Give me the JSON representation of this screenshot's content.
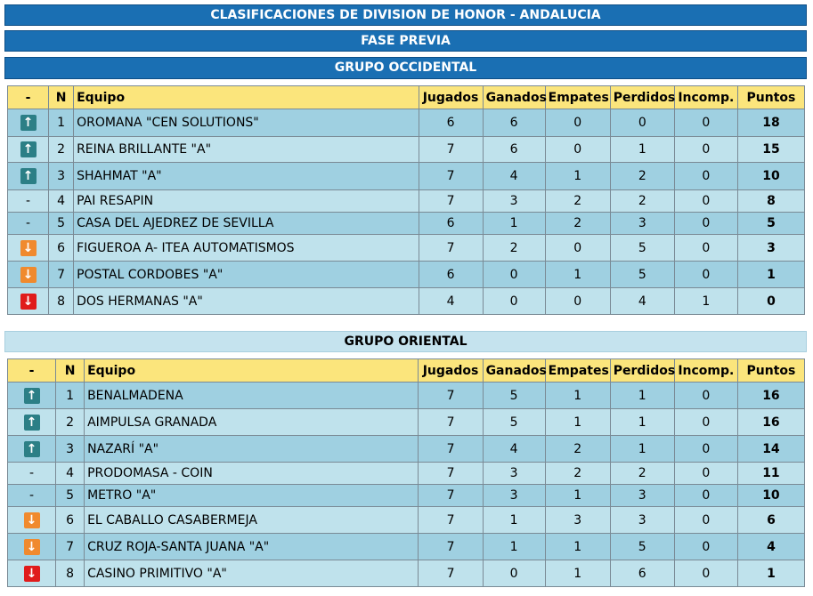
{
  "title": "CLASIFICACIONES DE DIVISION DE HONOR - ANDALUCIA",
  "phase": "FASE PREVIA",
  "columns": {
    "trend": "-",
    "n": "N",
    "team": "Equipo",
    "played": "Jugados",
    "won": "Ganados",
    "drawn": "Empates",
    "lost": "Perdidos",
    "forfeit": "Incomp.",
    "points": "Puntos"
  },
  "groups": [
    {
      "name": "GRUPO OCCIDENTAL",
      "rows": [
        {
          "trend": "up",
          "n": "1",
          "team": "OROMANA \"CEN SOLUTIONS\"",
          "played": "6",
          "won": "6",
          "drawn": "0",
          "lost": "0",
          "forfeit": "0",
          "points": "18"
        },
        {
          "trend": "up",
          "n": "2",
          "team": "REINA BRILLANTE \"A\"",
          "played": "7",
          "won": "6",
          "drawn": "0",
          "lost": "1",
          "forfeit": "0",
          "points": "15"
        },
        {
          "trend": "up",
          "n": "3",
          "team": "SHAHMAT \"A\"",
          "played": "7",
          "won": "4",
          "drawn": "1",
          "lost": "2",
          "forfeit": "0",
          "points": "10"
        },
        {
          "trend": "-",
          "n": "4",
          "team": "PAI RESAPIN",
          "played": "7",
          "won": "3",
          "drawn": "2",
          "lost": "2",
          "forfeit": "0",
          "points": "8"
        },
        {
          "trend": "-",
          "n": "5",
          "team": "CASA DEL AJEDREZ DE SEVILLA",
          "played": "6",
          "won": "1",
          "drawn": "2",
          "lost": "3",
          "forfeit": "0",
          "points": "5"
        },
        {
          "trend": "down-orange",
          "n": "6",
          "team": "FIGUEROA A- ITEA AUTOMATISMOS",
          "played": "7",
          "won": "2",
          "drawn": "0",
          "lost": "5",
          "forfeit": "0",
          "points": "3"
        },
        {
          "trend": "down-orange",
          "n": "7",
          "team": "POSTAL CORDOBES \"A\"",
          "played": "6",
          "won": "0",
          "drawn": "1",
          "lost": "5",
          "forfeit": "0",
          "points": "1"
        },
        {
          "trend": "down-red",
          "n": "8",
          "team": "DOS HERMANAS \"A\"",
          "played": "4",
          "won": "0",
          "drawn": "0",
          "lost": "4",
          "forfeit": "1",
          "points": "0"
        }
      ]
    },
    {
      "name": "GRUPO ORIENTAL",
      "rows": [
        {
          "trend": "up",
          "n": "1",
          "team": "BENALMADENA",
          "played": "7",
          "won": "5",
          "drawn": "1",
          "lost": "1",
          "forfeit": "0",
          "points": "16"
        },
        {
          "trend": "up",
          "n": "2",
          "team": "AIMPULSA GRANADA",
          "played": "7",
          "won": "5",
          "drawn": "1",
          "lost": "1",
          "forfeit": "0",
          "points": "16"
        },
        {
          "trend": "up",
          "n": "3",
          "team": "NAZARÍ \"A\"",
          "played": "7",
          "won": "4",
          "drawn": "2",
          "lost": "1",
          "forfeit": "0",
          "points": "14"
        },
        {
          "trend": "-",
          "n": "4",
          "team": "PRODOMASA - COIN",
          "played": "7",
          "won": "3",
          "drawn": "2",
          "lost": "2",
          "forfeit": "0",
          "points": "11"
        },
        {
          "trend": "-",
          "n": "5",
          "team": "METRO \"A\"",
          "played": "7",
          "won": "3",
          "drawn": "1",
          "lost": "3",
          "forfeit": "0",
          "points": "10"
        },
        {
          "trend": "down-orange",
          "n": "6",
          "team": "EL CABALLO CASABERMEJA",
          "played": "7",
          "won": "1",
          "drawn": "3",
          "lost": "3",
          "forfeit": "0",
          "points": "6"
        },
        {
          "trend": "down-orange",
          "n": "7",
          "team": "CRUZ ROJA-SANTA JUANA \"A\"",
          "played": "7",
          "won": "1",
          "drawn": "1",
          "lost": "5",
          "forfeit": "0",
          "points": "4"
        },
        {
          "trend": "down-red",
          "n": "8",
          "team": "CASINO PRIMITIVO \"A\"",
          "played": "7",
          "won": "0",
          "drawn": "1",
          "lost": "6",
          "forfeit": "0",
          "points": "1"
        }
      ]
    }
  ],
  "colors": {
    "header_bar": "#1a6fb3",
    "header_row": "#fbe57c",
    "row_dark": "#9fd0e1",
    "row_light": "#bfe2ec",
    "arrow_up": "#2c7f86",
    "arrow_down_orange": "#f08a2e",
    "arrow_down_red": "#e01b1b"
  }
}
